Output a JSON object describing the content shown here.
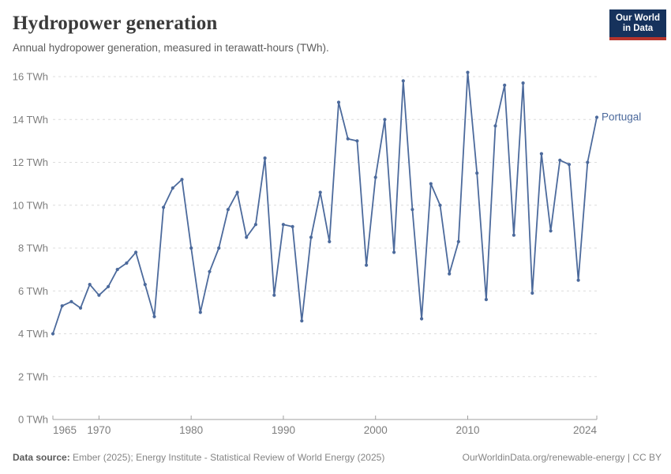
{
  "header": {
    "title": "Hydropower generation",
    "subtitle": "Annual hydropower generation, measured in terawatt-hours (TWh)."
  },
  "logo": {
    "line1": "Our World",
    "line2": "in Data",
    "bg_color": "#16325c",
    "accent_color": "#b5342c"
  },
  "chart_data": {
    "type": "line",
    "title": "Hydropower generation",
    "xlabel": "",
    "ylabel": "TWh",
    "grid": "horizontal-dashed",
    "legend_position": "end-of-line",
    "xlim": [
      1965,
      2024
    ],
    "ylim": [
      0,
      16
    ],
    "y_ticks": [
      0,
      2,
      4,
      6,
      8,
      10,
      12,
      14,
      16
    ],
    "y_tick_suffix": " TWh",
    "x_ticks": [
      {
        "label": "1965",
        "year": 1965,
        "anchor": "start"
      },
      {
        "label": "1970",
        "year": 1970,
        "anchor": "middle"
      },
      {
        "label": "1980",
        "year": 1980,
        "anchor": "middle"
      },
      {
        "label": "1990",
        "year": 1990,
        "anchor": "middle"
      },
      {
        "label": "2000",
        "year": 2000,
        "anchor": "middle"
      },
      {
        "label": "2010",
        "year": 2010,
        "anchor": "middle"
      },
      {
        "label": "2024",
        "year": 2024,
        "anchor": "end"
      }
    ],
    "series": [
      {
        "name": "Portugal",
        "color": "#4c6a9c",
        "x": [
          1965,
          1966,
          1967,
          1968,
          1969,
          1970,
          1971,
          1972,
          1973,
          1974,
          1975,
          1976,
          1977,
          1978,
          1979,
          1980,
          1981,
          1982,
          1983,
          1984,
          1985,
          1986,
          1987,
          1988,
          1989,
          1990,
          1991,
          1992,
          1993,
          1994,
          1995,
          1996,
          1997,
          1998,
          1999,
          2000,
          2001,
          2002,
          2003,
          2004,
          2005,
          2006,
          2007,
          2008,
          2009,
          2010,
          2011,
          2012,
          2013,
          2014,
          2015,
          2016,
          2017,
          2018,
          2019,
          2020,
          2021,
          2022,
          2023,
          2024
        ],
        "values": [
          4.0,
          5.3,
          5.5,
          5.2,
          6.3,
          5.8,
          6.2,
          7.0,
          7.3,
          7.8,
          6.3,
          4.8,
          9.9,
          10.8,
          11.2,
          8.0,
          5.0,
          6.9,
          8.0,
          9.8,
          10.6,
          8.5,
          9.1,
          12.2,
          5.8,
          9.1,
          9.0,
          4.6,
          8.5,
          10.6,
          8.3,
          14.8,
          13.1,
          13.0,
          7.2,
          11.3,
          14.0,
          7.8,
          15.8,
          9.8,
          4.7,
          11.0,
          10.0,
          6.8,
          8.3,
          16.2,
          11.5,
          5.6,
          13.7,
          15.6,
          8.6,
          15.7,
          5.9,
          12.4,
          8.8,
          12.1,
          11.9,
          6.5,
          12.0,
          14.1
        ]
      }
    ]
  },
  "footer": {
    "source_label": "Data source:",
    "source_text": " Ember (2025); Energy Institute - Statistical Review of World Energy (2025)",
    "credit_link": "OurWorldinData.org/renewable-energy",
    "credit_sep": " | ",
    "credit_license": "CC BY"
  }
}
